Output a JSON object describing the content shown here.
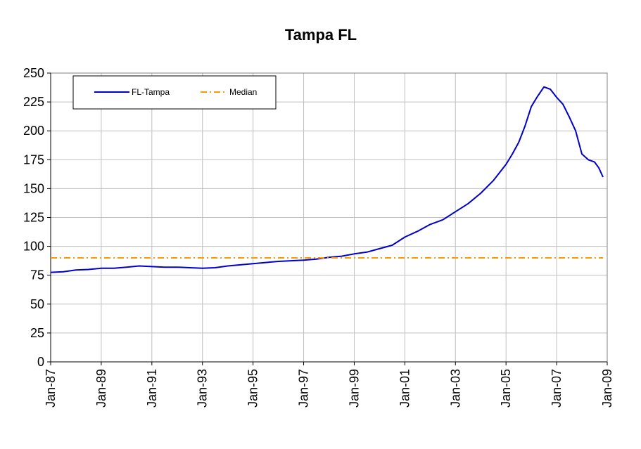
{
  "chart_data": {
    "type": "line",
    "title": "Tampa FL",
    "xlabel": "",
    "ylabel": "",
    "ylim": [
      0,
      250
    ],
    "yticks": [
      0,
      25,
      50,
      75,
      100,
      125,
      150,
      175,
      200,
      225,
      250
    ],
    "xlim": [
      "1987-01",
      "2009-01"
    ],
    "xtick_labels": [
      "Jan-87",
      "Jan-89",
      "Jan-91",
      "Jan-93",
      "Jan-95",
      "Jan-97",
      "Jan-99",
      "Jan-01",
      "Jan-03",
      "Jan-05",
      "Jan-07",
      "Jan-09"
    ],
    "grid": true,
    "legend": {
      "position": "top-left",
      "entries": [
        "FL-Tampa",
        "Median"
      ]
    },
    "series": [
      {
        "name": "FL-Tampa",
        "color": "#0000cc",
        "style": "solid",
        "x": [
          "1987-01",
          "1987-07",
          "1988-01",
          "1988-07",
          "1989-01",
          "1989-07",
          "1990-01",
          "1990-07",
          "1991-01",
          "1991-07",
          "1992-01",
          "1992-07",
          "1993-01",
          "1993-07",
          "1994-01",
          "1994-07",
          "1995-01",
          "1995-07",
          "1996-01",
          "1996-07",
          "1997-01",
          "1997-07",
          "1998-01",
          "1998-07",
          "1999-01",
          "1999-07",
          "2000-01",
          "2000-07",
          "2001-01",
          "2001-07",
          "2002-01",
          "2002-07",
          "2003-01",
          "2003-07",
          "2004-01",
          "2004-07",
          "2005-01",
          "2005-04",
          "2005-07",
          "2005-10",
          "2006-01",
          "2006-04",
          "2006-07",
          "2006-10",
          "2007-01",
          "2007-04",
          "2007-07",
          "2007-10",
          "2008-01",
          "2008-04",
          "2008-07",
          "2008-09",
          "2008-11"
        ],
        "y": [
          77.5,
          78,
          79.5,
          80,
          81,
          81,
          82,
          83,
          82.5,
          82,
          82,
          81.5,
          81,
          81.5,
          83,
          84,
          85,
          86,
          87,
          87.5,
          88,
          89,
          90.5,
          91.5,
          93.5,
          95,
          98,
          101,
          108,
          113,
          119,
          123,
          130,
          137,
          146,
          157,
          171,
          180,
          190,
          204,
          221,
          230,
          238,
          236,
          229,
          223,
          212,
          200,
          180,
          175,
          173,
          168,
          160
        ]
      },
      {
        "name": "Median",
        "color": "#ff9900",
        "style": "dash-dot",
        "x": [
          "1987-01",
          "2008-11"
        ],
        "y": [
          90,
          90
        ]
      }
    ]
  }
}
